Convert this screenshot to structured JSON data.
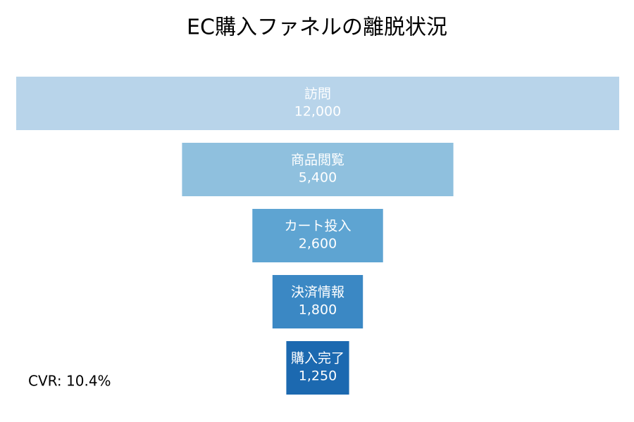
{
  "chart_data": {
    "type": "funnel",
    "title": "EC購入ファネルの離脱状況",
    "categories": [
      "訪問",
      "商品閲覧",
      "カート投入",
      "決済情報",
      "購入完了"
    ],
    "values": [
      12000,
      5400,
      2600,
      1800,
      1250
    ],
    "value_labels": [
      "12,000",
      "5,400",
      "2,600",
      "1,800",
      "1,250"
    ],
    "colors": [
      "#b8d4ea",
      "#8fc0de",
      "#5ea4d2",
      "#3b88c4",
      "#1c69b0"
    ],
    "annotation": "CVR: 10.4%"
  }
}
